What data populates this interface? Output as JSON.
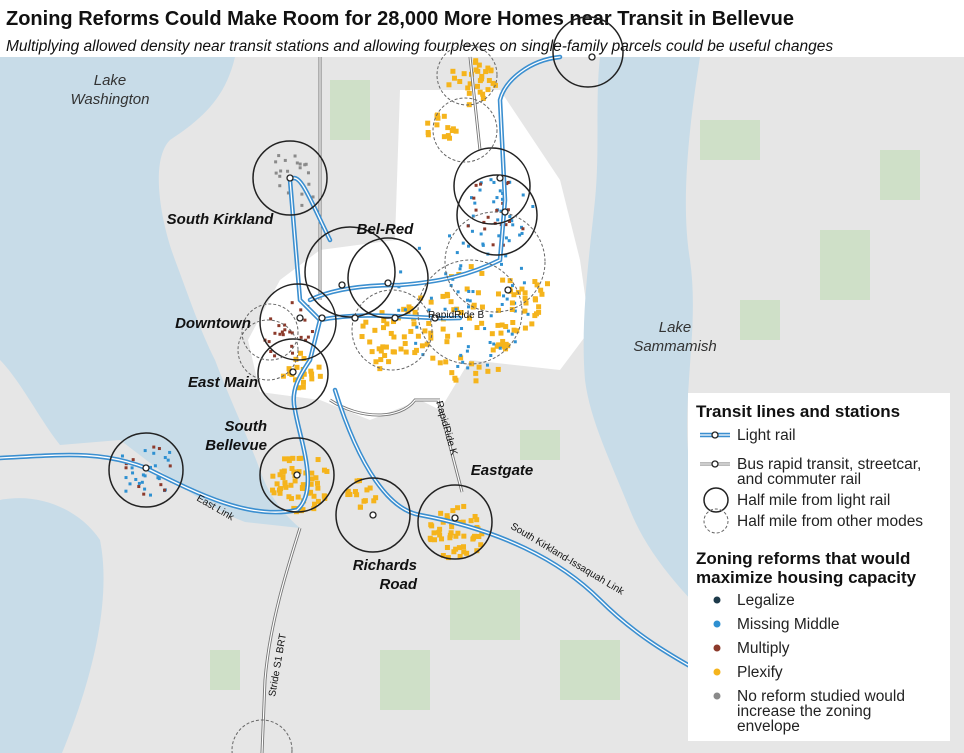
{
  "header": {
    "title": "Zoning Reforms Could Make Room for 28,000 More Homes near Transit in Bellevue",
    "subtitle": "Multiplying allowed density near transit stations and allowing fourplexes on single-family parcels could be useful changes"
  },
  "map": {
    "places": [
      {
        "lines": [
          "Lake",
          "Washington"
        ]
      },
      {
        "lines": [
          "South Kirkland"
        ]
      },
      {
        "lines": [
          "Bel-Red"
        ]
      },
      {
        "lines": [
          "Downtown"
        ]
      },
      {
        "lines": [
          "East Main"
        ]
      },
      {
        "lines": [
          "South",
          "Bellevue"
        ]
      },
      {
        "lines": [
          "Eastgate"
        ]
      },
      {
        "lines": [
          "Richards",
          "Road"
        ]
      },
      {
        "lines": [
          "Lake",
          "Sammamish"
        ]
      }
    ],
    "routes": [
      "RapidRide B",
      "RapidRide K",
      "East Link",
      "South Kirkland-Issaquah Link",
      "Stride S1 BRT"
    ]
  },
  "legend": {
    "transit": {
      "title": "Transit lines and stations",
      "items": [
        {
          "label": [
            "Light rail"
          ]
        },
        {
          "label": [
            "Bus rapid transit, streetcar,",
            "and commuter rail"
          ]
        },
        {
          "label": [
            "Half mile from light rail"
          ]
        },
        {
          "label": [
            "Half mile from other modes"
          ]
        }
      ]
    },
    "zoning": {
      "title": [
        "Zoning reforms that would",
        "maximize housing capacity"
      ],
      "items": [
        {
          "label": [
            "Legalize"
          ],
          "color": "#1d3a4a"
        },
        {
          "label": [
            "Missing Middle"
          ],
          "color": "#2e90d1"
        },
        {
          "label": [
            "Multiply"
          ],
          "color": "#8c3a2b"
        },
        {
          "label": [
            "Plexify"
          ],
          "color": "#f5b41c"
        },
        {
          "label": [
            "No reform studied would",
            "increase the zoning",
            "envelope"
          ],
          "color": "#8a8a8a"
        }
      ]
    }
  }
}
